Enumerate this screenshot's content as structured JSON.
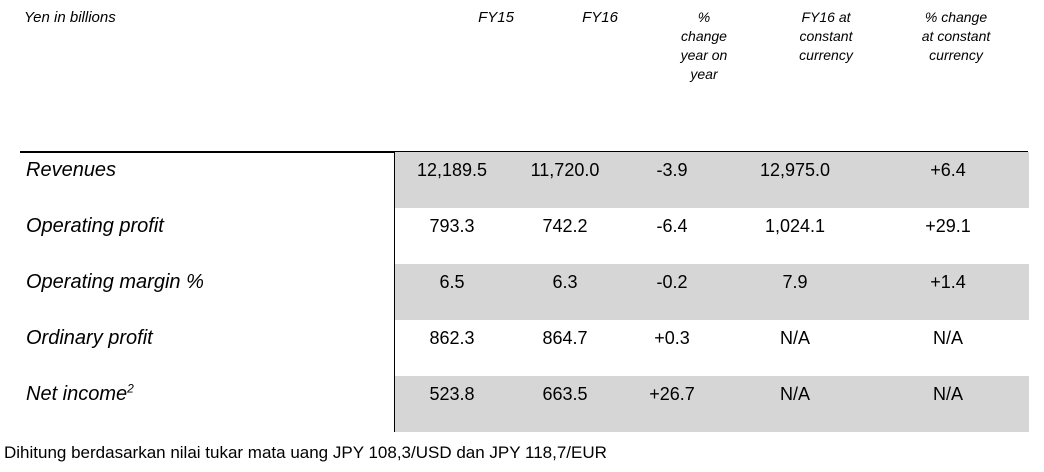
{
  "header": {
    "label": "Yen in billions",
    "fy15": "FY15",
    "fy16": "FY16",
    "pct_change_lines": [
      "%",
      "change",
      "year on",
      "year"
    ],
    "const_currency_lines": [
      "FY16 at",
      "constant",
      "currency"
    ],
    "pct_const_lines": [
      "% change",
      "at constant",
      "currency"
    ]
  },
  "rows": [
    {
      "label": "Revenues",
      "fy15": "12,189.5",
      "fy16": "11,720.0",
      "pct": "-3.9",
      "const": "12,975.0",
      "pct_const": "+6.4"
    },
    {
      "label": "Operating profit",
      "fy15": "793.3",
      "fy16": "742.2",
      "pct": "-6.4",
      "const": "1,024.1",
      "pct_const": "+29.1"
    },
    {
      "label": "Operating margin %",
      "fy15": "6.5",
      "fy16": "6.3",
      "pct": "-0.2",
      "const": "7.9",
      "pct_const": "+1.4"
    },
    {
      "label": "Ordinary profit",
      "fy15": "862.3",
      "fy16": "864.7",
      "pct": "+0.3",
      "const": "N/A",
      "pct_const": "N/A"
    },
    {
      "label": "Net income",
      "label_sup": "2",
      "fy15": "523.8",
      "fy16": "663.5",
      "pct": "+26.7",
      "const": "N/A",
      "pct_const": "N/A"
    }
  ],
  "footnote": "Dihitung berdasarkan nilai tukar mata uang JPY 108,3/USD dan JPY 118,7/EUR"
}
